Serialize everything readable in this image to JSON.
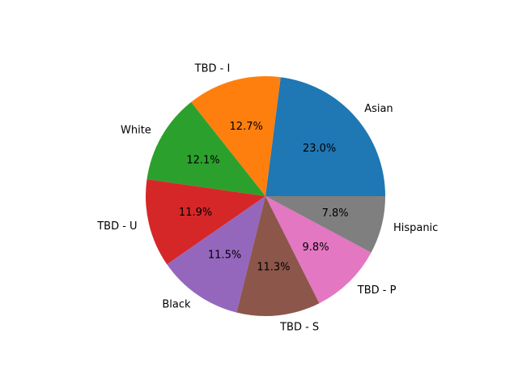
{
  "chart_data": {
    "type": "pie",
    "title": "",
    "start_angle_deg": 0,
    "direction": "counterclockwise",
    "slices": [
      {
        "label": "Asian",
        "value": 23.0,
        "pct_label": "23.0%",
        "color": "#1f77b4"
      },
      {
        "label": "TBD - I",
        "value": 12.7,
        "pct_label": "12.7%",
        "color": "#ff7f0e"
      },
      {
        "label": "White",
        "value": 12.1,
        "pct_label": "12.1%",
        "color": "#2ca02c"
      },
      {
        "label": "TBD - U",
        "value": 11.9,
        "pct_label": "11.9%",
        "color": "#d62728"
      },
      {
        "label": "Black",
        "value": 11.5,
        "pct_label": "11.5%",
        "color": "#9467bd"
      },
      {
        "label": "TBD - S",
        "value": 11.3,
        "pct_label": "11.3%",
        "color": "#8c564b"
      },
      {
        "label": "TBD - P",
        "value": 9.8,
        "pct_label": "9.8%",
        "color": "#e377c2"
      },
      {
        "label": "Hispanic",
        "value": 7.8,
        "pct_label": "7.8%",
        "color": "#7f7f7f"
      }
    ]
  }
}
